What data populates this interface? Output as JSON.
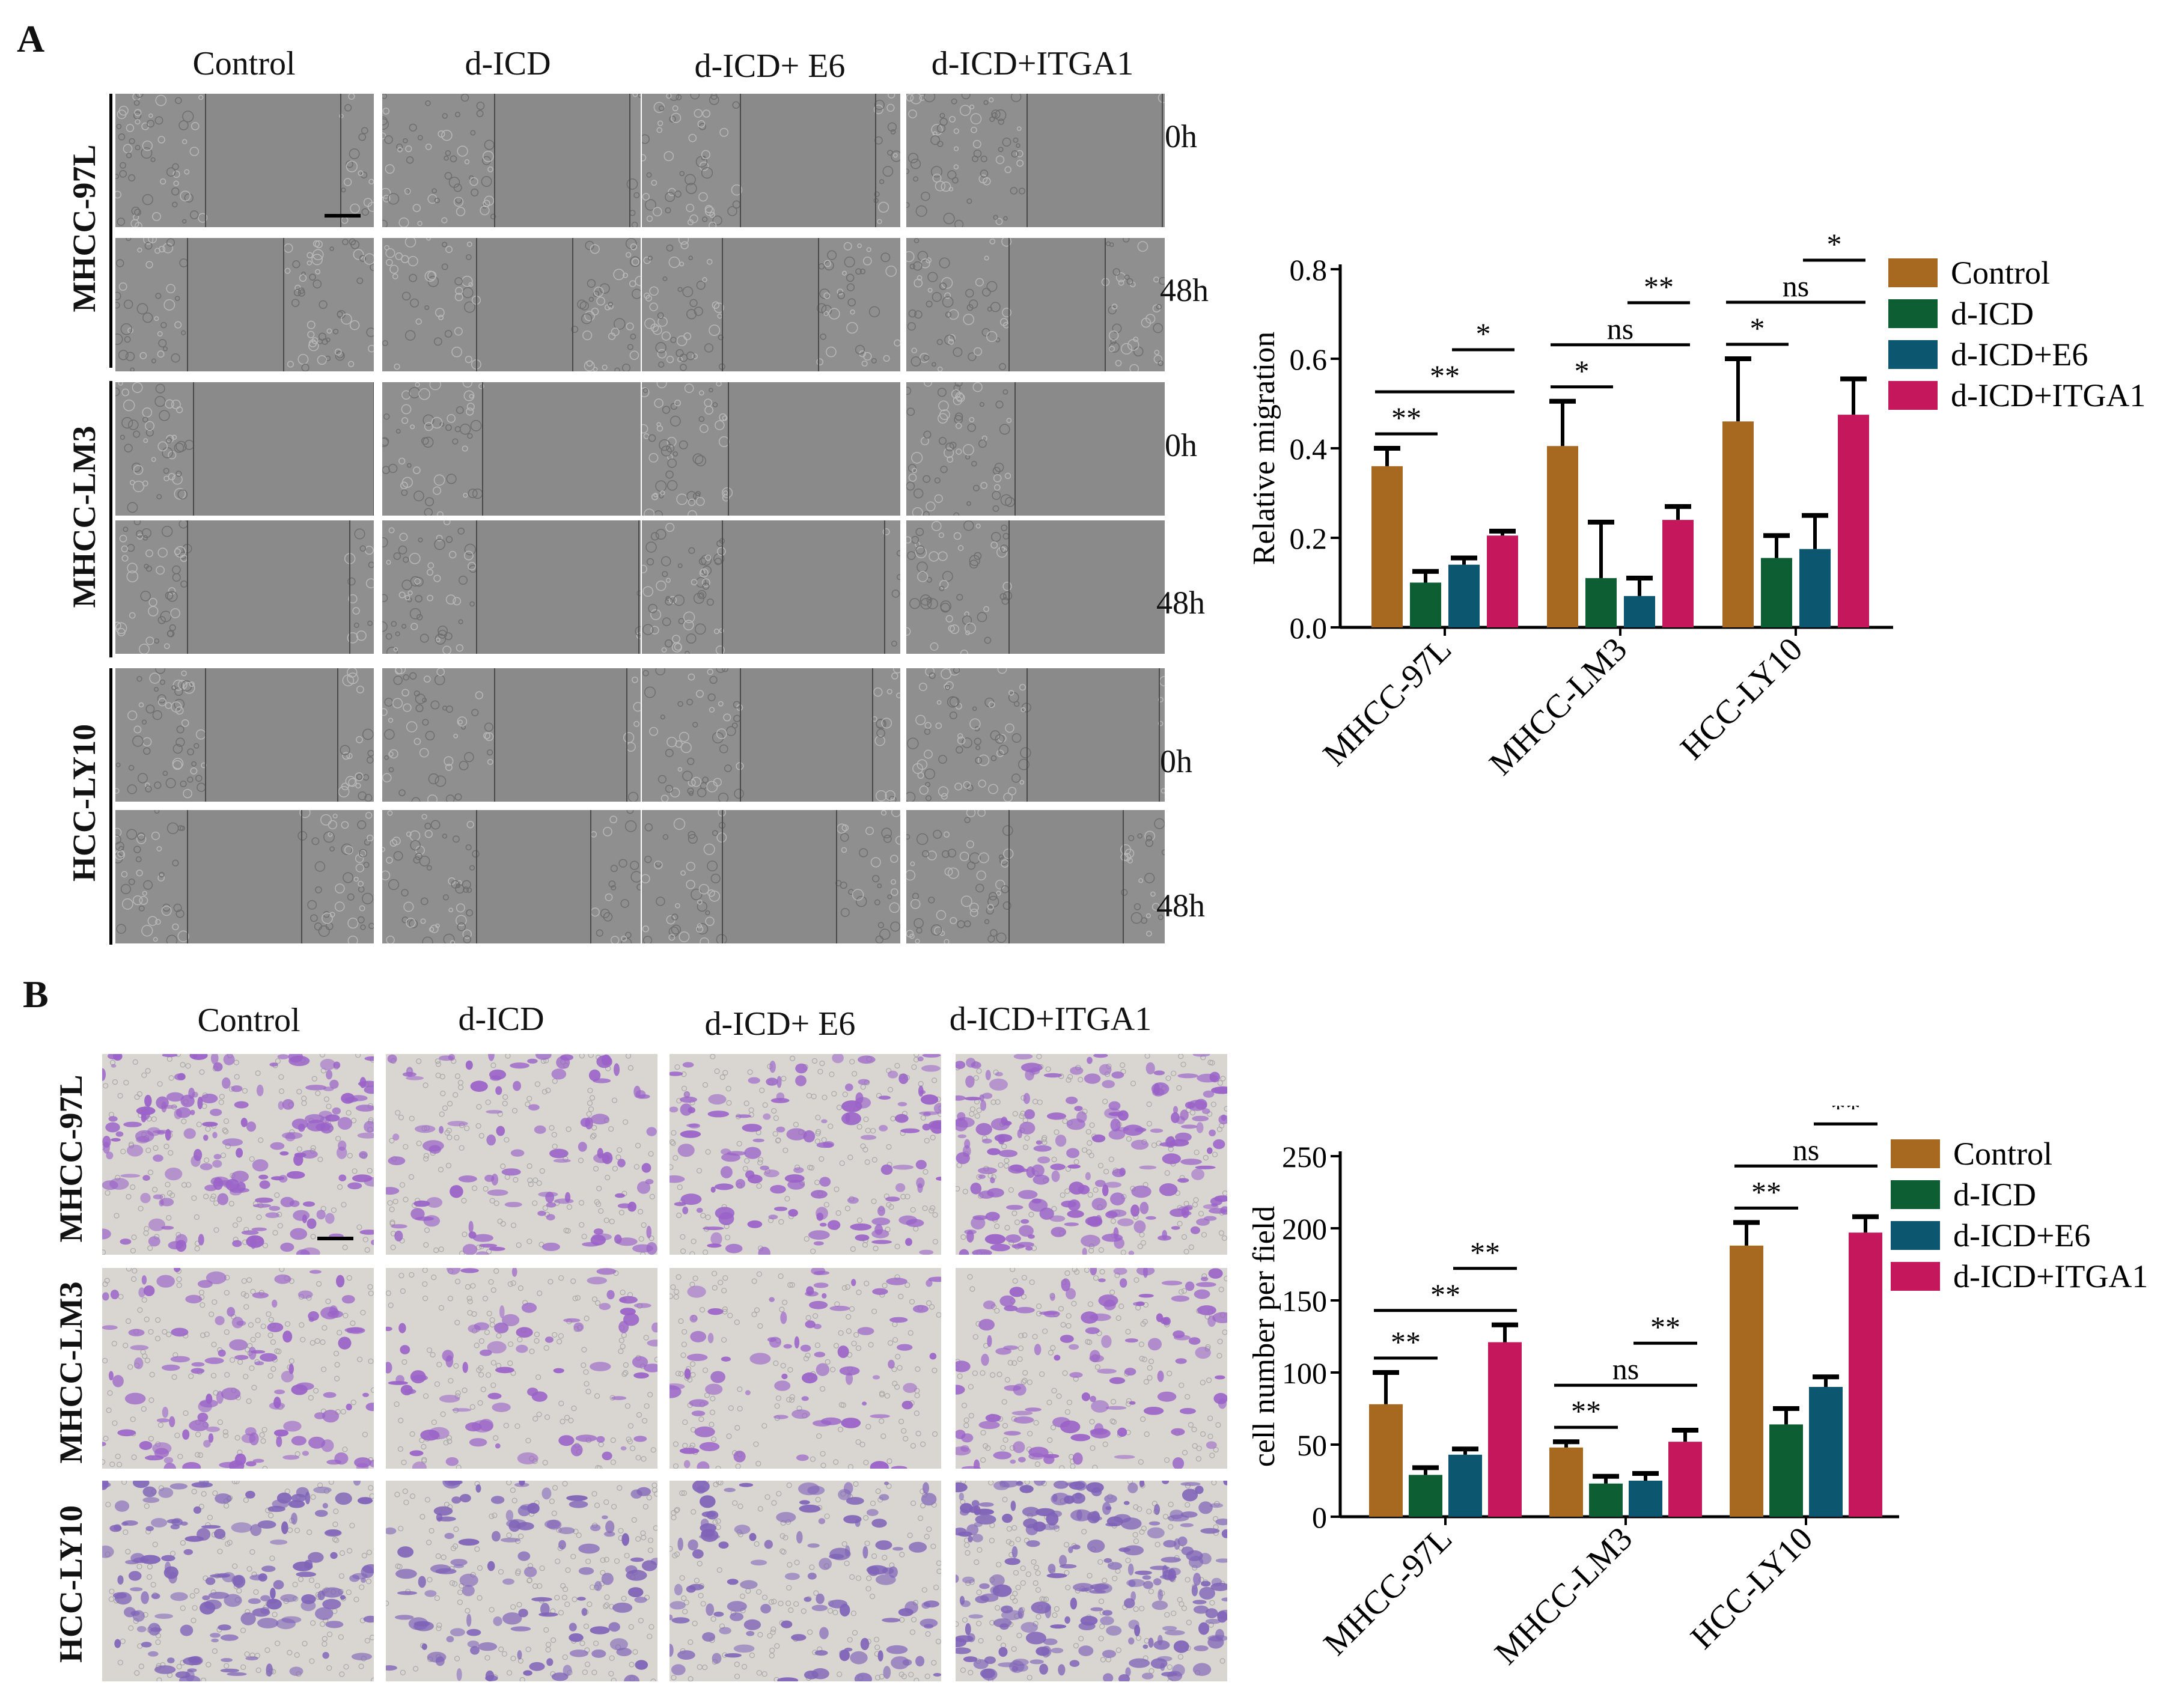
{
  "panels": {
    "a": {
      "letter": "A",
      "columns": [
        "Control",
        "d-ICD",
        "d-ICD+ E6",
        "d-ICD+ITGA1"
      ],
      "rows": [
        "MHCC-97L",
        "MHCC-LM3",
        "HCC-LY10"
      ],
      "times": [
        "0h",
        "48h",
        "0h",
        "48h",
        "0h",
        "48h"
      ]
    },
    "b": {
      "letter": "B",
      "columns": [
        "Control",
        "d-ICD",
        "d-ICD+ E6",
        "d-ICD+ITGA1"
      ],
      "rows": [
        "MHCC-97L",
        "MHCC-LM3",
        "HCC-LY10"
      ]
    }
  },
  "colors": {
    "Control": "#a7691f",
    "d-ICD": "#0e5e33",
    "d-ICD+E6": "#0c5670",
    "d-ICD+ITGA1": "#c5175b",
    "scratch_bg": "#8f8f8f",
    "transwell_bg": "#d9d6d2",
    "stain": "#8b5bbf"
  },
  "chart_data": [
    {
      "type": "bar",
      "categories": [
        "MHCC-97L",
        "MHCC-LM3",
        "HCC-LY10"
      ],
      "ylabel": "Relative migration",
      "ylim": [
        0,
        0.8
      ],
      "yticks": [
        "0.0",
        "0.2",
        "0.4",
        "0.6",
        "0.8"
      ],
      "legend": [
        "Control",
        "d-ICD",
        "d-ICD+E6",
        "d-ICD+ITGA1"
      ],
      "legend_position": "top-right",
      "series": [
        {
          "name": "Control",
          "values": [
            0.36,
            0.405,
            0.46
          ],
          "errors": [
            0.04,
            0.1,
            0.14
          ]
        },
        {
          "name": "d-ICD",
          "values": [
            0.1,
            0.11,
            0.155
          ],
          "errors": [
            0.025,
            0.125,
            0.05
          ]
        },
        {
          "name": "d-ICD+E6",
          "values": [
            0.14,
            0.07,
            0.175
          ],
          "errors": [
            0.015,
            0.04,
            0.075
          ]
        },
        {
          "name": "d-ICD+ITGA1",
          "values": [
            0.205,
            0.24,
            0.475
          ],
          "errors": [
            0.01,
            0.03,
            0.08
          ]
        }
      ],
      "annotations": [
        {
          "text": "**",
          "from": [
            0,
            0
          ],
          "to": [
            0,
            1
          ]
        },
        {
          "text": "**",
          "from": [
            0,
            0
          ],
          "to": [
            0,
            3
          ]
        },
        {
          "text": "*",
          "from": [
            0,
            2
          ],
          "to": [
            0,
            3
          ]
        },
        {
          "text": "*",
          "from": [
            1,
            0
          ],
          "to": [
            1,
            1
          ]
        },
        {
          "text": "ns",
          "from": [
            1,
            0
          ],
          "to": [
            1,
            3
          ]
        },
        {
          "text": "**",
          "from": [
            1,
            2
          ],
          "to": [
            1,
            3
          ]
        },
        {
          "text": "*",
          "from": [
            2,
            0
          ],
          "to": [
            2,
            1
          ]
        },
        {
          "text": "ns",
          "from": [
            2,
            0
          ],
          "to": [
            2,
            3
          ]
        },
        {
          "text": "*",
          "from": [
            2,
            2
          ],
          "to": [
            2,
            3
          ]
        }
      ]
    },
    {
      "type": "bar",
      "categories": [
        "MHCC-97L",
        "MHCC-LM3",
        "HCC-LY10"
      ],
      "ylabel": "cell number per field",
      "ylim": [
        0,
        250
      ],
      "yticks": [
        "0",
        "50",
        "100",
        "150",
        "200",
        "250"
      ],
      "legend": [
        "Control",
        "d-ICD",
        "d-ICD+E6",
        "d-ICD+ITGA1"
      ],
      "legend_position": "top-right",
      "series": [
        {
          "name": "Control",
          "values": [
            78,
            48,
            188
          ],
          "errors": [
            22,
            4,
            16
          ]
        },
        {
          "name": "d-ICD",
          "values": [
            29,
            23,
            64
          ],
          "errors": [
            5,
            5,
            11
          ]
        },
        {
          "name": "d-ICD+E6",
          "values": [
            43,
            25,
            90
          ],
          "errors": [
            4,
            5,
            7
          ]
        },
        {
          "name": "d-ICD+ITGA1",
          "values": [
            121,
            52,
            197
          ],
          "errors": [
            12,
            8,
            11
          ]
        }
      ],
      "annotations": [
        {
          "text": "**",
          "from": [
            0,
            0
          ],
          "to": [
            0,
            1
          ]
        },
        {
          "text": "**",
          "from": [
            0,
            0
          ],
          "to": [
            0,
            3
          ]
        },
        {
          "text": "**",
          "from": [
            0,
            2
          ],
          "to": [
            0,
            3
          ]
        },
        {
          "text": "**",
          "from": [
            1,
            0
          ],
          "to": [
            1,
            1
          ]
        },
        {
          "text": "ns",
          "from": [
            1,
            0
          ],
          "to": [
            1,
            3
          ]
        },
        {
          "text": "**",
          "from": [
            1,
            2
          ],
          "to": [
            1,
            3
          ]
        },
        {
          "text": "**",
          "from": [
            2,
            0
          ],
          "to": [
            2,
            1
          ]
        },
        {
          "text": "ns",
          "from": [
            2,
            0
          ],
          "to": [
            2,
            3
          ]
        },
        {
          "text": "**",
          "from": [
            2,
            2
          ],
          "to": [
            2,
            3
          ]
        }
      ]
    }
  ]
}
